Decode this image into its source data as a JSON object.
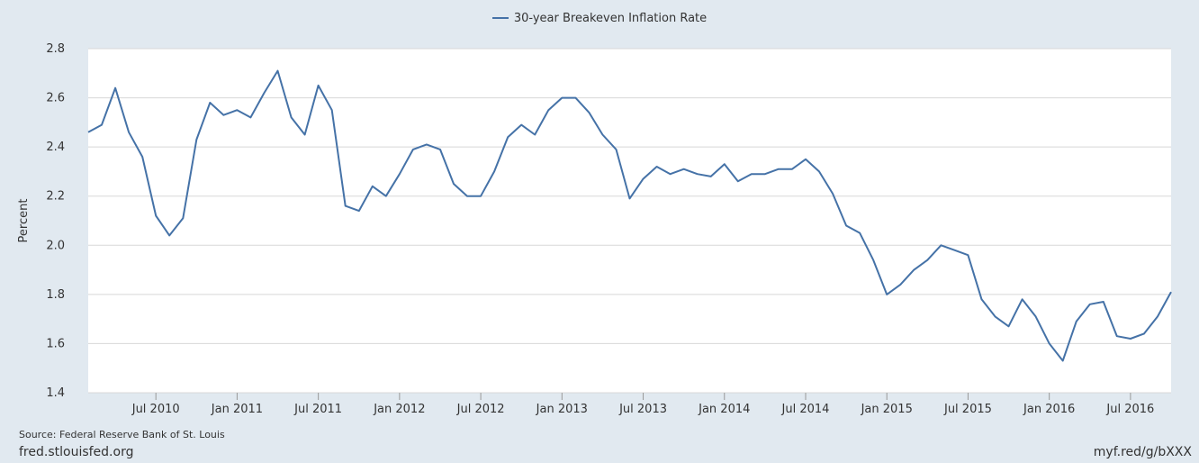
{
  "chart_data": {
    "type": "line",
    "title": "",
    "xlabel": "",
    "ylabel": "Percent",
    "ylim": [
      1.4,
      2.8
    ],
    "yticks": [
      1.4,
      1.6,
      1.8,
      2.0,
      2.2,
      2.4,
      2.6,
      2.8
    ],
    "ytick_labels": [
      "1.4",
      "1.6",
      "1.8",
      "2.0",
      "2.2",
      "2.4",
      "2.6",
      "2.8"
    ],
    "x_start": "2010-02",
    "x_end": "2016-10",
    "xticks": [
      {
        "date": "2010-07",
        "label": "Jul 2010"
      },
      {
        "date": "2011-01",
        "label": "Jan 2011"
      },
      {
        "date": "2011-07",
        "label": "Jul 2011"
      },
      {
        "date": "2012-01",
        "label": "Jan 2012"
      },
      {
        "date": "2012-07",
        "label": "Jul 2012"
      },
      {
        "date": "2013-01",
        "label": "Jan 2013"
      },
      {
        "date": "2013-07",
        "label": "Jul 2013"
      },
      {
        "date": "2014-01",
        "label": "Jan 2014"
      },
      {
        "date": "2014-07",
        "label": "Jul 2014"
      },
      {
        "date": "2015-01",
        "label": "Jan 2015"
      },
      {
        "date": "2015-07",
        "label": "Jul 2015"
      },
      {
        "date": "2016-01",
        "label": "Jan 2016"
      },
      {
        "date": "2016-07",
        "label": "Jul 2016"
      }
    ],
    "grid": true,
    "legend_position": "top-center",
    "series": [
      {
        "name": "30-year Breakeven Inflation Rate",
        "color": "#4572a7",
        "x": [
          "2010-02",
          "2010-03",
          "2010-04",
          "2010-05",
          "2010-06",
          "2010-07",
          "2010-08",
          "2010-09",
          "2010-10",
          "2010-11",
          "2010-12",
          "2011-01",
          "2011-02",
          "2011-03",
          "2011-04",
          "2011-05",
          "2011-06",
          "2011-07",
          "2011-08",
          "2011-09",
          "2011-10",
          "2011-11",
          "2011-12",
          "2012-01",
          "2012-02",
          "2012-03",
          "2012-04",
          "2012-05",
          "2012-06",
          "2012-07",
          "2012-08",
          "2012-09",
          "2012-10",
          "2012-11",
          "2012-12",
          "2013-01",
          "2013-02",
          "2013-03",
          "2013-04",
          "2013-05",
          "2013-06",
          "2013-07",
          "2013-08",
          "2013-09",
          "2013-10",
          "2013-11",
          "2013-12",
          "2014-01",
          "2014-02",
          "2014-03",
          "2014-04",
          "2014-05",
          "2014-06",
          "2014-07",
          "2014-08",
          "2014-09",
          "2014-10",
          "2014-11",
          "2014-12",
          "2015-01",
          "2015-02",
          "2015-03",
          "2015-04",
          "2015-05",
          "2015-06",
          "2015-07",
          "2015-08",
          "2015-09",
          "2015-10",
          "2015-11",
          "2015-12",
          "2016-01",
          "2016-02",
          "2016-03",
          "2016-04",
          "2016-05",
          "2016-06",
          "2016-07",
          "2016-08",
          "2016-09",
          "2016-10"
        ],
        "values": [
          2.46,
          2.49,
          2.64,
          2.46,
          2.36,
          2.12,
          2.04,
          2.11,
          2.43,
          2.58,
          2.53,
          2.55,
          2.52,
          2.62,
          2.71,
          2.52,
          2.45,
          2.65,
          2.55,
          2.16,
          2.14,
          2.24,
          2.2,
          2.29,
          2.39,
          2.41,
          2.39,
          2.25,
          2.2,
          2.2,
          2.3,
          2.44,
          2.49,
          2.45,
          2.55,
          2.6,
          2.6,
          2.54,
          2.45,
          2.39,
          2.19,
          2.27,
          2.32,
          2.29,
          2.31,
          2.29,
          2.28,
          2.33,
          2.26,
          2.29,
          2.29,
          2.31,
          2.31,
          2.35,
          2.3,
          2.21,
          2.08,
          2.05,
          1.94,
          1.8,
          1.84,
          1.9,
          1.94,
          2.0,
          1.98,
          1.96,
          1.78,
          1.71,
          1.67,
          1.78,
          1.71,
          1.6,
          1.53,
          1.69,
          1.76,
          1.77,
          1.63,
          1.62,
          1.64,
          1.71,
          1.81
        ]
      }
    ]
  },
  "legend": {
    "label": "30-year Breakeven Inflation Rate"
  },
  "source_text": "Source: Federal Reserve Bank of St. Louis",
  "footer_left": "fred.stlouisfed.org",
  "footer_right": "myf.red/g/bXXX"
}
